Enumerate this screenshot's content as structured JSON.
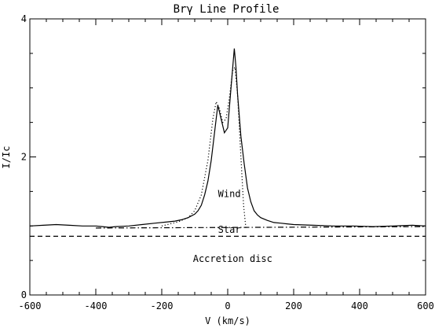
{
  "chart_data": {
    "type": "line",
    "title": "Brγ Line Profile",
    "xlabel": "V (km/s)",
    "ylabel": "I/Ic",
    "xlim": [
      -600,
      600
    ],
    "ylim": [
      0,
      4
    ],
    "x_ticks": [
      "-600",
      "-400",
      "-200",
      "0",
      "200",
      "400",
      "600"
    ],
    "y_ticks": [
      "0",
      "2",
      "4"
    ],
    "grid": false,
    "series": [
      {
        "style": "solid",
        "x": [
          -600,
          -560,
          -520,
          -480,
          -440,
          -400,
          -380,
          -360,
          -340,
          -300,
          -260,
          -220,
          -180,
          -160,
          -140,
          -120,
          -100,
          -90,
          -80,
          -70,
          -60,
          -50,
          -40,
          -30,
          -20,
          -10,
          0,
          10,
          20,
          25,
          30,
          40,
          50,
          60,
          70,
          80,
          90,
          100,
          120,
          140,
          160,
          180,
          200,
          260,
          320,
          380,
          440,
          500,
          560,
          600
        ],
        "y": [
          1.0,
          1.01,
          1.02,
          1.01,
          1.0,
          1.0,
          0.99,
          0.98,
          0.99,
          1.0,
          1.02,
          1.04,
          1.06,
          1.07,
          1.09,
          1.12,
          1.17,
          1.22,
          1.3,
          1.45,
          1.65,
          1.95,
          2.35,
          2.75,
          2.55,
          2.35,
          2.42,
          3.0,
          3.57,
          3.3,
          2.9,
          2.3,
          1.9,
          1.55,
          1.35,
          1.22,
          1.16,
          1.12,
          1.08,
          1.05,
          1.04,
          1.03,
          1.02,
          1.01,
          1.0,
          1.0,
          0.99,
          1.0,
          1.01,
          1.0
        ]
      },
      {
        "style": "dotted",
        "x": [
          -200,
          -150,
          -120,
          -100,
          -80,
          -60,
          -45,
          -35,
          -25,
          -15,
          -5,
          5,
          15,
          22,
          30,
          40,
          48,
          55
        ],
        "y": [
          1.0,
          1.06,
          1.12,
          1.22,
          1.45,
          1.95,
          2.55,
          2.8,
          2.7,
          2.5,
          2.55,
          2.85,
          3.25,
          3.3,
          2.9,
          2.0,
          1.3,
          0.97
        ]
      },
      {
        "style": "dash-dot",
        "x": [
          -400,
          600
        ],
        "y": [
          0.97,
          0.99
        ]
      },
      {
        "style": "dashed",
        "x": [
          -600,
          600
        ],
        "y": [
          0.85,
          0.85
        ]
      }
    ],
    "annotations": [
      {
        "text": "Wind",
        "x": 5,
        "y": 1.42
      },
      {
        "text": "Star",
        "x": 5,
        "y": 0.9
      },
      {
        "text": "Accretion disc",
        "x": 15,
        "y": 0.48
      }
    ]
  }
}
